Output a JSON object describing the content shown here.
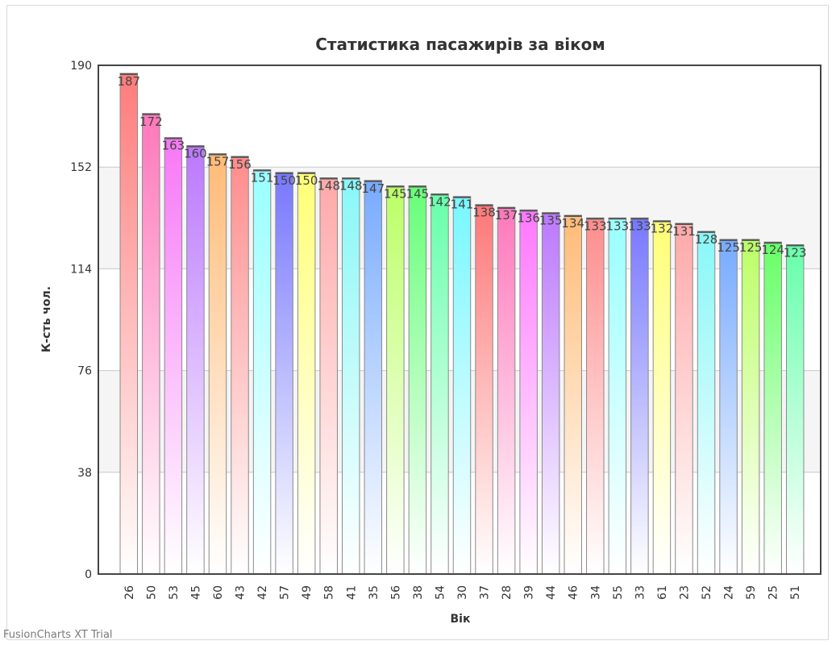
{
  "watermark": "FusionCharts XT Trial",
  "chart_data": {
    "type": "bar",
    "title": "Статистика пасажирів за віком",
    "xlabel": "Вік",
    "ylabel": "К-сть чол.",
    "ylim": [
      0,
      190
    ],
    "yticks": [
      "0",
      "38",
      "76",
      "114",
      "152",
      "190"
    ],
    "grid": true,
    "categories": [
      "26",
      "50",
      "53",
      "45",
      "60",
      "43",
      "42",
      "57",
      "49",
      "58",
      "41",
      "35",
      "56",
      "38",
      "54",
      "30",
      "37",
      "28",
      "39",
      "44",
      "46",
      "34",
      "55",
      "33",
      "61",
      "23",
      "52",
      "24",
      "59",
      "25",
      "51"
    ],
    "values": [
      187,
      172,
      163,
      160,
      157,
      156,
      151,
      150,
      150,
      148,
      148,
      147,
      145,
      145,
      142,
      141,
      138,
      137,
      136,
      135,
      134,
      133,
      133,
      133,
      132,
      131,
      128,
      125,
      125,
      124,
      123
    ],
    "colors": [
      "#ff7b7b",
      "#ff77bb",
      "#f777f7",
      "#bb77ff",
      "#ffbb77",
      "#ff8c8c",
      "#99ffff",
      "#7777ff",
      "#ffff77",
      "#ffa8a8",
      "#88f7f7",
      "#77aaff",
      "#bbff66",
      "#66ff77",
      "#66ffaa",
      "#77f7ff",
      "#ff7777",
      "#ff77bb",
      "#ff77ff",
      "#bb77ff",
      "#ffbb77",
      "#ff8c8c",
      "#99ffff",
      "#7777ff",
      "#ffff77",
      "#ffa8a8",
      "#88f7f7",
      "#77aaff",
      "#bbff66",
      "#66ff66",
      "#66ffaa"
    ]
  }
}
